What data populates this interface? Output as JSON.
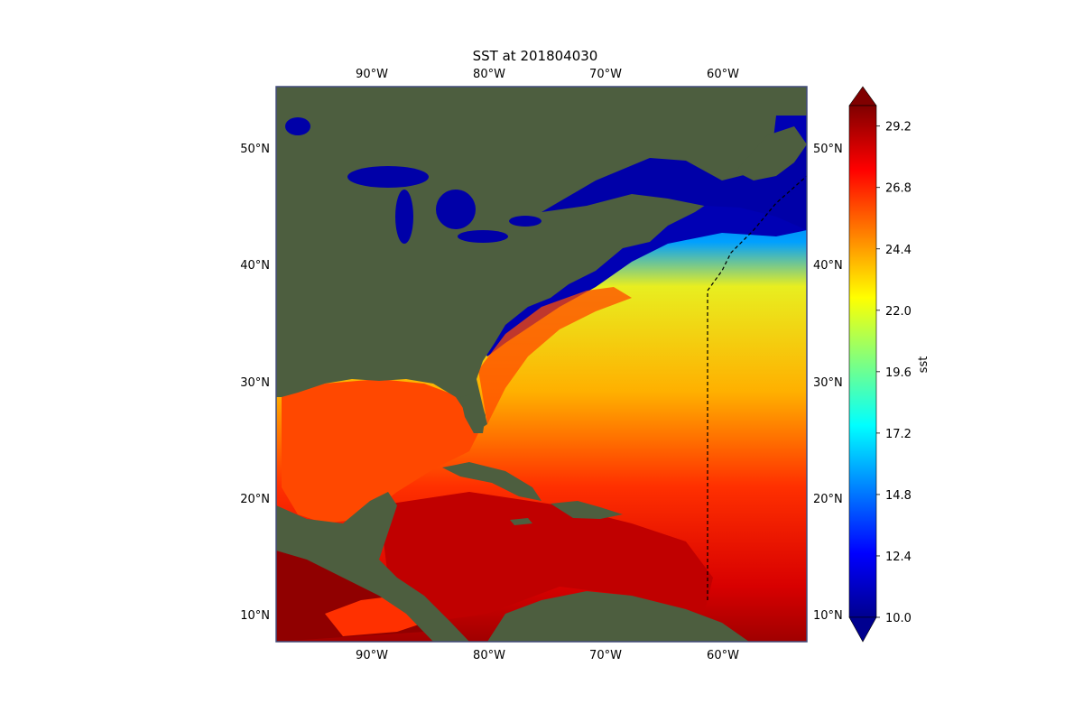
{
  "title": "SST at 201804030",
  "map": {
    "lon_ticks": [
      "90°W",
      "80°W",
      "70°W",
      "60°W"
    ],
    "lat_ticks": [
      "50°N",
      "40°N",
      "30°N",
      "20°N",
      "10°N"
    ],
    "lon_range": [
      -98.5,
      -53.5
    ],
    "lat_range": [
      8,
      55
    ],
    "boundary_line": "dashed",
    "colors": {
      "land": "#4a5a3e",
      "cold_water": "#0000a8",
      "frame": "#404a7a"
    }
  },
  "colorbar": {
    "label": "sst",
    "min": 10.0,
    "max": 30.0,
    "ticks": [
      "29.2",
      "26.8",
      "24.4",
      "22.0",
      "19.6",
      "17.2",
      "14.8",
      "12.4",
      "10.0"
    ],
    "colormap": "jet",
    "extend": "both"
  }
}
